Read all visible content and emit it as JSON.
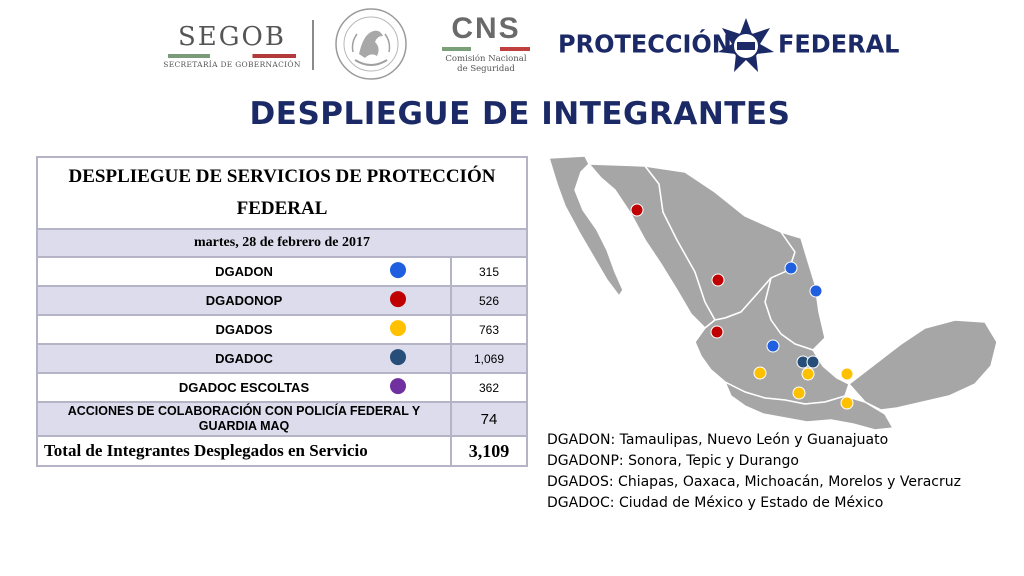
{
  "header": {
    "segob": {
      "word": "SEGOB",
      "sub": "SECRETARÍA DE GOBERNACIÓN"
    },
    "cns": {
      "word": "CNS",
      "sub_line1": "Comisión Nacional",
      "sub_line2": "de Seguridad"
    },
    "pf_left": "PROTECCIÓN",
    "pf_right": "FEDERAL"
  },
  "title": "DESPLIEGUE DE INTEGRANTES",
  "table": {
    "heading": "DESPLIEGUE DE SERVICIOS DE PROTECCIÓN FEDERAL",
    "date": "martes, 28 de febrero de 2017",
    "rows": [
      {
        "label": "DGADON",
        "value": "315",
        "color": "#1f5fe0"
      },
      {
        "label": "DGADONOP",
        "value": "526",
        "color": "#c00000"
      },
      {
        "label": "DGADOS",
        "value": "763",
        "color": "#ffc000"
      },
      {
        "label": "DGADOC",
        "value": "1,069",
        "color": "#264e78"
      },
      {
        "label": "DGADOC ESCOLTAS",
        "value": "362",
        "color": "#7030a0"
      }
    ],
    "collab_label": "ACCIONES DE COLABORACIÓN CON POLICÍA FEDERAL Y GUARDIA MAQ",
    "collab_value": "74",
    "total_label": "Total de Integrantes Desplegados en Servicio",
    "total_value": "3,109"
  },
  "legend": [
    "DGADON: Tamaulipas, Nuevo León y Guanajuato",
    "DGADONP: Sonora, Tepic y Durango",
    "DGADOS: Chiapas, Oaxaca, Michoacán, Morelos y Veracruz",
    "DGADOC: Ciudad de México y Estado de México"
  ],
  "colors": {
    "title": "#1b2a66",
    "map_fill": "#a6a6a6",
    "map_border": "#ffffff"
  }
}
